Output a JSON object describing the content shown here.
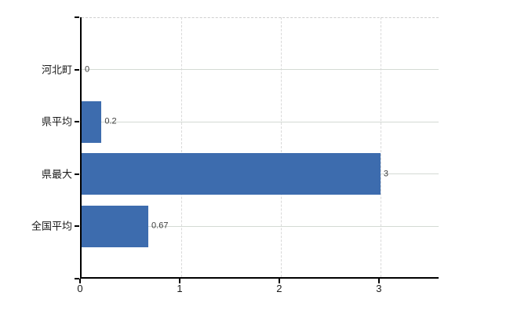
{
  "chart_data": {
    "type": "bar",
    "orientation": "horizontal",
    "title": "",
    "categories": [
      "河北町",
      "県平均",
      "県最大",
      "全国平均"
    ],
    "values": [
      0,
      0.2,
      3,
      0.67
    ],
    "value_labels": [
      "0",
      "0.2",
      "3",
      "0.67"
    ],
    "x_tick_labels": [
      "0",
      "1",
      "2",
      "3"
    ],
    "x_tick_values": [
      0,
      1,
      2,
      3
    ],
    "xlim": [
      0,
      3.6
    ],
    "grid": true,
    "legend": false
  },
  "colors": {
    "background": "#ffffff",
    "bar": "#3d6cae",
    "axis": "#000000",
    "horizontal_grid": "#d4dad4",
    "vertical_grid": "#d9d9d9",
    "plot_top_border": "#cfcfcf",
    "category_text": "#1a1a1a",
    "tick_text": "#1a1a1a",
    "value_text": "#3c3c3c"
  }
}
